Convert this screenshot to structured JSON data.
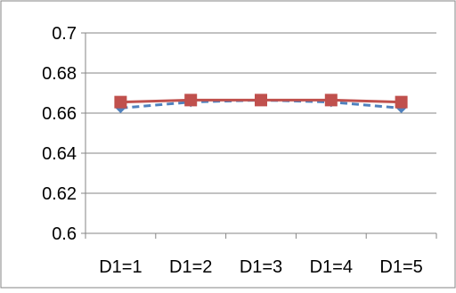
{
  "chart_data": {
    "type": "line",
    "title": "",
    "xlabel": "",
    "ylabel": "",
    "categories": [
      "D1=1",
      "D1=2",
      "D1=3",
      "D1=4",
      "D1=5"
    ],
    "ylim": [
      0.6,
      0.7
    ],
    "y_ticks": [
      "0.6",
      "0.62",
      "0.64",
      "0.66",
      "0.68",
      "0.7"
    ],
    "y_tick_values": [
      0.6,
      0.62,
      0.64,
      0.66,
      0.68,
      0.7
    ],
    "grid": "horizontal",
    "legend": "none",
    "series": [
      {
        "values": [
          0.6625,
          0.6655,
          0.6665,
          0.6655,
          0.6625
        ],
        "color": "#4f81bd",
        "line_style": "dashed",
        "marker": "diamond"
      },
      {
        "values": [
          0.6655,
          0.6665,
          0.6665,
          0.6665,
          0.6655
        ],
        "color": "#c0504d",
        "line_style": "solid",
        "marker": "square"
      }
    ],
    "colors": {
      "axis": "#868686",
      "grid": "#868686",
      "frame": "#868686"
    }
  }
}
